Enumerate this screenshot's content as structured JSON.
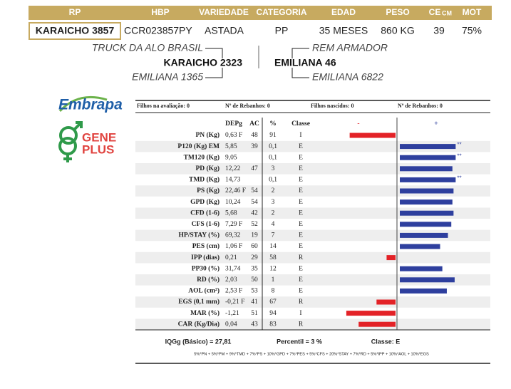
{
  "header": {
    "columns": [
      "RP",
      "HBP",
      "VARIEDADE",
      "CATEGORIA",
      "EDAD",
      "PESO",
      "CE",
      "MOT"
    ],
    "ce_unit": "CM",
    "values": [
      "KARAICHO 3857",
      "CCR023857PY",
      "ASTADA",
      "PP",
      "35 MESES",
      "860 KG",
      "39",
      "75%"
    ]
  },
  "pedigree": {
    "sire": "KARAICHO 2323",
    "sire_sire": "TRUCK DA ALO BRASIL",
    "sire_dam": "EMILIANA 1365",
    "dam": "EMILIANA 46",
    "dam_sire": "REM ARMADOR",
    "dam_dam": "EMILIANA 6822"
  },
  "logos": {
    "embrapa": "Embrapa",
    "gene": "GENE",
    "plus": "PLUS"
  },
  "summary": [
    "Filhos na avaliação: 0",
    "Nº de Rebanhos: 0",
    "Filhos nascidos: 0",
    "Nº de Rebanhos: 0"
  ],
  "columns": {
    "depg": "DEPg",
    "ac": "AC",
    "pct": "%",
    "classe": "Classe",
    "minus": "-",
    "plus": "+"
  },
  "traits": [
    {
      "name": "PN (Kg)",
      "depg": "0,63 F",
      "ac": "48",
      "pct": 91,
      "classe": "I"
    },
    {
      "name": "P120 (Kg) EM",
      "depg": "5,85",
      "ac": "39",
      "pct": 0.1,
      "pct_label": "0,1",
      "classe": "E",
      "flag": "**"
    },
    {
      "name": "TM120 (Kg)",
      "depg": "9,05",
      "pct": 0.1,
      "pct_label": "0,1",
      "classe": "E",
      "flag": "**"
    },
    {
      "name": "PD (Kg)",
      "depg": "12,22",
      "ac": "47",
      "pct": 3,
      "classe": "E"
    },
    {
      "name": "TMD (Kg)",
      "depg": "14,73",
      "pct": 0.1,
      "pct_label": "0,1",
      "classe": "E",
      "flag": "**"
    },
    {
      "name": "PS (Kg)",
      "depg": "22,46 F",
      "ac": "54",
      "pct": 2,
      "classe": "E"
    },
    {
      "name": "GPD (Kg)",
      "depg": "10,24",
      "ac": "54",
      "pct": 3,
      "classe": "E"
    },
    {
      "name": "CFD (1-6)",
      "depg": "5,68",
      "ac": "42",
      "pct": 2,
      "classe": "E"
    },
    {
      "name": "CFS (1-6)",
      "depg": "7,29 F",
      "ac": "52",
      "pct": 4,
      "classe": "E"
    },
    {
      "name": "HP/STAY (%)",
      "depg": "69,32",
      "ac": "19",
      "pct": 7,
      "classe": "E"
    },
    {
      "name": "PES (cm)",
      "depg": "1,06 F",
      "ac": "60",
      "pct": 14,
      "classe": "E"
    },
    {
      "name": "IPP (dias)",
      "depg": "0,21",
      "ac": "29",
      "pct": 58,
      "classe": "R"
    },
    {
      "name": "PP30 (%)",
      "depg": "31,74",
      "ac": "35",
      "pct": 12,
      "classe": "E"
    },
    {
      "name": "RD (%)",
      "depg": "2,03",
      "ac": "50",
      "pct": 1,
      "classe": "E"
    },
    {
      "name": "AOL (cm²)",
      "depg": "2,53 F",
      "ac": "53",
      "pct": 8,
      "classe": "E"
    },
    {
      "name": "EGS (0,1 mm)",
      "depg": "-0,21 F",
      "ac": "41",
      "pct": 67,
      "classe": "R"
    },
    {
      "name": "MAR (%)",
      "depg": "-1,21",
      "ac": "51",
      "pct": 94,
      "classe": "I"
    },
    {
      "name": "CAR (Kg/Dia)",
      "depg": "0,04",
      "ac": "43",
      "pct": 83,
      "classe": "R"
    }
  ],
  "footer": {
    "iqg": "IQGg (Básico) = 27,81",
    "percentil": "Percentil = 3 %",
    "classe": "Classe: E",
    "formula": "5%*PN + 5%*PM + 9%*TMD + 7%*PS + 10%*GPD + 7%*PES + 5%*CFS + 20%*STAY + 7%*RD + 5%*IPP + 10%*AOL + 10%*EGS"
  }
}
